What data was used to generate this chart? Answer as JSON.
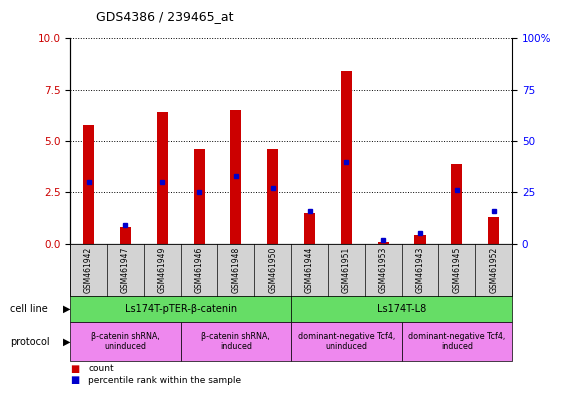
{
  "title": "GDS4386 / 239465_at",
  "samples": [
    "GSM461942",
    "GSM461947",
    "GSM461949",
    "GSM461946",
    "GSM461948",
    "GSM461950",
    "GSM461944",
    "GSM461951",
    "GSM461953",
    "GSM461943",
    "GSM461945",
    "GSM461952"
  ],
  "counts": [
    5.8,
    0.8,
    6.4,
    4.6,
    6.5,
    4.6,
    1.5,
    8.4,
    0.07,
    0.4,
    3.9,
    1.3
  ],
  "percentile": [
    30,
    9,
    30,
    25,
    33,
    27,
    16,
    40,
    2,
    5,
    26,
    16
  ],
  "bar_color": "#cc0000",
  "dot_color": "#0000cc",
  "ylim_left": [
    0,
    10
  ],
  "ylim_right": [
    0,
    100
  ],
  "yticks_left": [
    0,
    2.5,
    5.0,
    7.5,
    10
  ],
  "yticks_right": [
    0,
    25,
    50,
    75,
    100
  ],
  "cell_line_groups": [
    {
      "label": "Ls174T-pTER-β-catenin",
      "start": 0,
      "end": 5,
      "color": "#66dd66"
    },
    {
      "label": "Ls174T-L8",
      "start": 6,
      "end": 11,
      "color": "#66dd66"
    }
  ],
  "protocol_groups": [
    {
      "label": "β-catenin shRNA,\nuninduced",
      "start": 0,
      "end": 2,
      "color": "#ee88ee"
    },
    {
      "label": "β-catenin shRNA,\ninduced",
      "start": 3,
      "end": 5,
      "color": "#ee88ee"
    },
    {
      "label": "dominant-negative Tcf4,\nuninduced",
      "start": 6,
      "end": 8,
      "color": "#ee88ee"
    },
    {
      "label": "dominant-negative Tcf4,\ninduced",
      "start": 9,
      "end": 11,
      "color": "#ee88ee"
    }
  ],
  "title_fontsize": 9,
  "cell_line_row_label": "cell line",
  "protocol_row_label": "protocol",
  "legend_count_label": "count",
  "legend_pct_label": "percentile rank within the sample",
  "axes_bg_color": "#ffffff",
  "label_bg_color": "#d3d3d3"
}
